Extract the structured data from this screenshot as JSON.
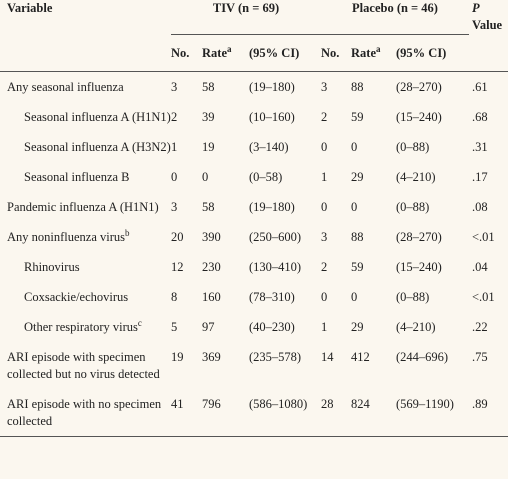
{
  "header": {
    "variable": "Variable",
    "tiv_group": "TIV (n = 69)",
    "placebo_group": "Placebo (n = 46)",
    "p_letter": "P",
    "p_value_word": "Value",
    "no": "No.",
    "rate": "Rate",
    "rate_sup": "a",
    "ci": "(95% CI)"
  },
  "rows": [
    {
      "label": "Any seasonal influenza",
      "sup": "",
      "indent": false,
      "tiv_no": "3",
      "tiv_rate": "58",
      "tiv_ci": "(19–180)",
      "pl_no": "3",
      "pl_rate": "88",
      "pl_ci": "(28–270)",
      "p": ".61"
    },
    {
      "label": "Seasonal influenza A (H1N1)",
      "sup": "",
      "indent": true,
      "tiv_no": "2",
      "tiv_rate": "39",
      "tiv_ci": "(10–160)",
      "pl_no": "2",
      "pl_rate": "59",
      "pl_ci": "(15–240)",
      "p": ".68"
    },
    {
      "label": "Seasonal influenza A (H3N2)",
      "sup": "",
      "indent": true,
      "tiv_no": "1",
      "tiv_rate": "19",
      "tiv_ci": "(3–140)",
      "pl_no": "0",
      "pl_rate": "0",
      "pl_ci": "(0–88)",
      "p": ".31"
    },
    {
      "label": "Seasonal influenza B",
      "sup": "",
      "indent": true,
      "tiv_no": "0",
      "tiv_rate": "0",
      "tiv_ci": "(0–58)",
      "pl_no": "1",
      "pl_rate": "29",
      "pl_ci": "(4–210)",
      "p": ".17"
    },
    {
      "label": "Pandemic influenza A (H1N1)",
      "sup": "",
      "indent": false,
      "tiv_no": "3",
      "tiv_rate": "58",
      "tiv_ci": "(19–180)",
      "pl_no": "0",
      "pl_rate": "0",
      "pl_ci": "(0–88)",
      "p": ".08"
    },
    {
      "label": "Any noninfluenza virus",
      "sup": "b",
      "indent": false,
      "tiv_no": "20",
      "tiv_rate": "390",
      "tiv_ci": "(250–600)",
      "pl_no": "3",
      "pl_rate": "88",
      "pl_ci": "(28–270)",
      "p": "<.01"
    },
    {
      "label": "Rhinovirus",
      "sup": "",
      "indent": true,
      "tiv_no": "12",
      "tiv_rate": "230",
      "tiv_ci": "(130–410)",
      "pl_no": "2",
      "pl_rate": "59",
      "pl_ci": "(15–240)",
      "p": ".04"
    },
    {
      "label": "Coxsackie/echovirus",
      "sup": "",
      "indent": true,
      "tiv_no": "8",
      "tiv_rate": "160",
      "tiv_ci": "(78–310)",
      "pl_no": "0",
      "pl_rate": "0",
      "pl_ci": "(0–88)",
      "p": "<.01"
    },
    {
      "label": "Other respiratory virus",
      "sup": "c",
      "indent": true,
      "tiv_no": "5",
      "tiv_rate": "97",
      "tiv_ci": "(40–230)",
      "pl_no": "1",
      "pl_rate": "29",
      "pl_ci": "(4–210)",
      "p": ".22"
    },
    {
      "label": "ARI episode with specimen collected but no virus detected",
      "sup": "",
      "indent": false,
      "tiv_no": "19",
      "tiv_rate": "369",
      "tiv_ci": "(235–578)",
      "pl_no": "14",
      "pl_rate": "412",
      "pl_ci": "(244–696)",
      "p": ".75"
    },
    {
      "label": "ARI episode with no specimen collected",
      "sup": "",
      "indent": false,
      "tiv_no": "41",
      "tiv_rate": "796",
      "tiv_ci": "(586–1080)",
      "pl_no": "28",
      "pl_rate": "824",
      "pl_ci": "(569–1190)",
      "p": ".89"
    }
  ]
}
